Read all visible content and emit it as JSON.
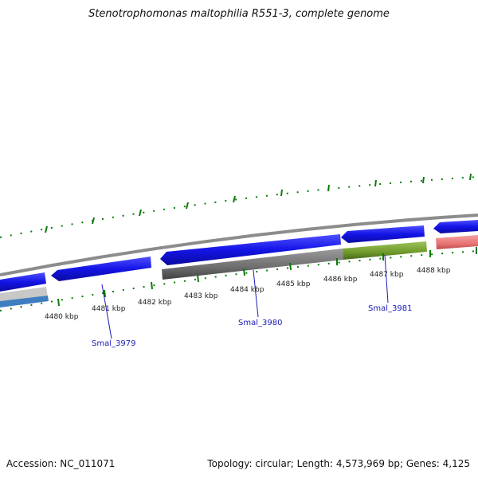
{
  "title": "Stenotrophomonas maltophilia R551-3, complete genome",
  "footer": {
    "accession": "Accession: NC_011071",
    "summary": "Topology: circular; Length: 4,573,969 bp; Genes: 4,125"
  },
  "ticks": [
    "4480 kbp",
    "4481 kbp",
    "4482 kbp",
    "4483 kbp",
    "4484 kbp",
    "4485 kbp",
    "4486 kbp",
    "4487 kbp",
    "4488 kbp"
  ],
  "gene_labels": [
    "Smal_3979",
    "Smal_3980",
    "Smal_3981"
  ],
  "colors": {
    "cds": "#1414e6",
    "backbone": "#8c8c8c",
    "orf_gray": "#6e6e6e",
    "orf_green": "#6f9a2a",
    "pink": "#e87474",
    "steelblue": "#3f7fbf",
    "tick_green": "#0b7a0b",
    "label_blue": "#1a1ab8"
  }
}
